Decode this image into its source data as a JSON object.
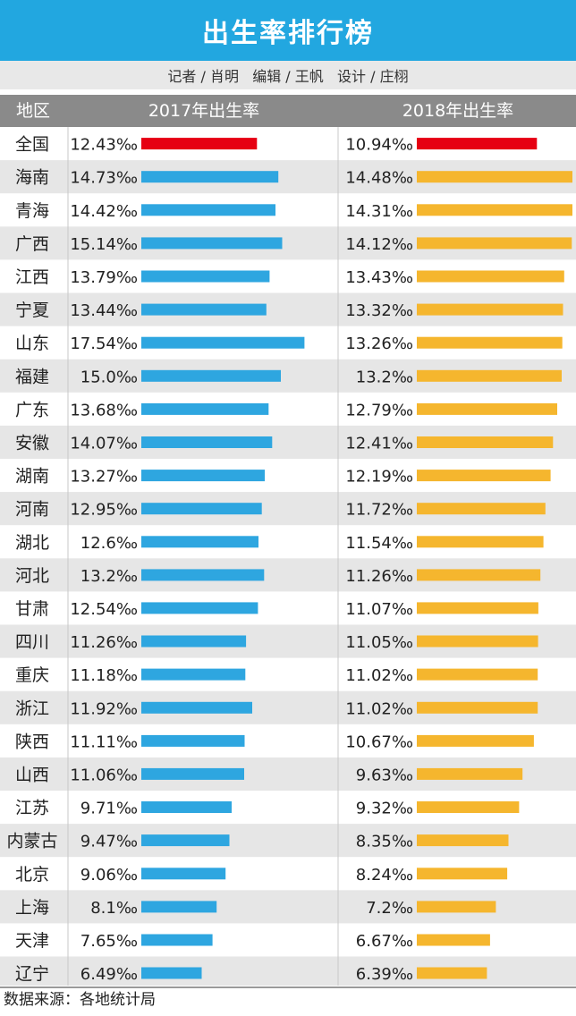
{
  "title": "出生率排行榜",
  "byline": "记者 / 肖明   编辑 / 王帆   设计 / 庄栩",
  "source": "数据来源：各地统计局",
  "chart_data": {
    "type": "bar",
    "columns": {
      "region": "地区",
      "y2017": "2017年出生率",
      "y2018": "2018年出生率"
    },
    "unit": "‰",
    "categories": [
      "全国",
      "海南",
      "青海",
      "广西",
      "江西",
      "宁夏",
      "山东",
      "福建",
      "广东",
      "安徽",
      "湖南",
      "河南",
      "湖北",
      "河北",
      "甘肃",
      "四川",
      "重庆",
      "浙江",
      "陕西",
      "山西",
      "江苏",
      "内蒙古",
      "北京",
      "上海",
      "天津",
      "辽宁"
    ],
    "series": [
      {
        "name": "2017年出生率",
        "labels": [
          "12.43",
          "14.73",
          "14.42",
          "15.14",
          "13.79",
          "13.44",
          "17.54",
          "15.0",
          "13.68",
          "14.07",
          "13.27",
          "12.95",
          "12.6",
          "13.2",
          "12.54",
          "11.26",
          "11.18",
          "11.92",
          "11.11",
          "11.06",
          "9.71",
          "9.47",
          "9.06",
          "8.1",
          "7.65",
          "6.49"
        ]
      },
      {
        "name": "2018年出生率",
        "labels": [
          "10.94",
          "14.48",
          "14.31",
          "14.12",
          "13.43",
          "13.32",
          "13.26",
          "13.2",
          "12.79",
          "12.41",
          "12.19",
          "11.72",
          "11.54",
          "11.26",
          "11.07",
          "11.05",
          "11.02",
          "11.02",
          "10.67",
          "9.63",
          "9.32",
          "8.35",
          "8.24",
          "7.2",
          "6.67",
          "6.39"
        ]
      }
    ],
    "colors": {
      "highlight": "#e60012",
      "bar_2017": "#2ea6e0",
      "bar_2018": "#f5b62e",
      "row_alt": "#e6e6e6"
    }
  }
}
